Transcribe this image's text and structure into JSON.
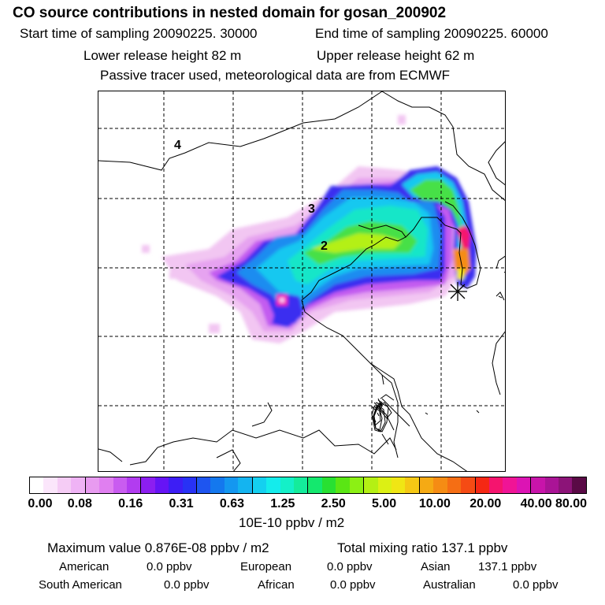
{
  "title": "CO  source contributions in nested domain for gosan_200902",
  "header": {
    "start_time": "Start time of sampling 20090225. 30000",
    "end_time": "End time of sampling 20090225. 60000",
    "lower_release": "Lower release height   82 m",
    "upper_release": "Upper release height   62 m",
    "tracer_note": "Passive tracer used, meteorological data are from ECMWF"
  },
  "map": {
    "region_labels": [
      "4",
      "3",
      "2"
    ],
    "receptor_marker": "asterisk"
  },
  "colorbar": {
    "tick_labels": [
      "0.00",
      "0.08",
      "0.16",
      "0.31",
      "0.63",
      "1.25",
      "2.50",
      "5.00",
      "10.00",
      "20.00",
      "40.00",
      "80.00"
    ],
    "unit_label": "10E-10 ppbv / m2",
    "colors": [
      "#ffffff",
      "#fbe6fb",
      "#f5ccf5",
      "#efb3f5",
      "#e89bf0",
      "#e07ff0",
      "#c95cf0",
      "#b23cf0",
      "#8c1ef0",
      "#6614f5",
      "#3d1ef5",
      "#2832f5",
      "#1e55f0",
      "#1478ee",
      "#1497f0",
      "#14b4f0",
      "#14d0f0",
      "#14ecec",
      "#14f0c8",
      "#14ec9b",
      "#14e86e",
      "#28e032",
      "#5ae614",
      "#8cf014",
      "#b4f014",
      "#dcf014",
      "#f0e614",
      "#f5c814",
      "#f5aa14",
      "#f58c14",
      "#f56e14",
      "#f54b14",
      "#f52814",
      "#f5146e",
      "#f01496",
      "#dc14b4",
      "#c814aa",
      "#aa1496",
      "#8c1478",
      "#5a0a46"
    ]
  },
  "stats": {
    "max_value": "Maximum value  0.876E-08 ppbv / m2",
    "total_mixing": "Total mixing ratio      137.1 ppbv",
    "american_label": "American",
    "american_value": "0.0 ppbv",
    "european_label": "European",
    "european_value": "0.0 ppbv",
    "asian_label": "Asian",
    "asian_value": "137.1 ppbv",
    "south_american_label": "South American",
    "south_american_value": "0.0 ppbv",
    "african_label": "African",
    "african_value": "0.0 ppbv",
    "australian_label": "Australian",
    "australian_value": "0.0 ppbv"
  }
}
